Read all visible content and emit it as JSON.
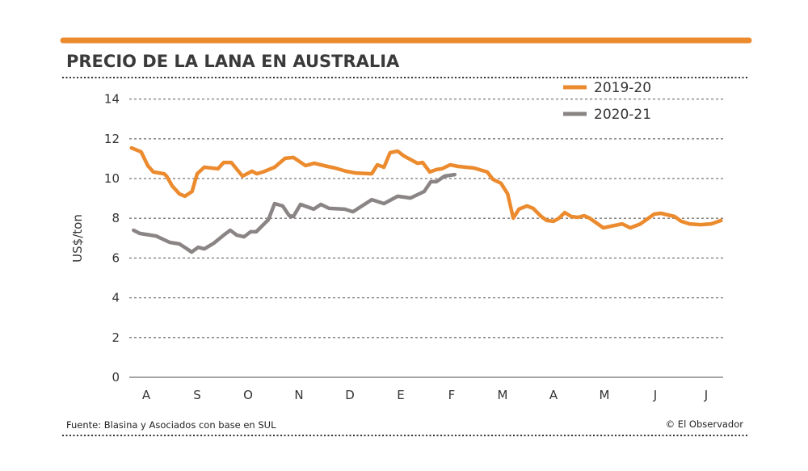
{
  "colors": {
    "accent": "#ec8a2e",
    "series_2019": "#ec8a2e",
    "series_2020": "#8a8584"
  },
  "source": "Fuente: Blasina y Asociados con base en SUL",
  "credit": "© El Observador",
  "chart_data": {
    "type": "line",
    "title": "PRECIO DE LA LANA EN AUSTRALIA",
    "xlabel": "",
    "ylabel": "US$/ton",
    "ylim": [
      0,
      14
    ],
    "yticks": [
      0,
      2,
      4,
      6,
      8,
      10,
      12,
      14
    ],
    "x_tick_labels": [
      "A",
      "S",
      "O",
      "N",
      "D",
      "E",
      "F",
      "M",
      "A",
      "M",
      "J",
      "J"
    ],
    "x_units": "months since start of August (0 = A)",
    "grid": true,
    "legend_position": "top-right",
    "series": [
      {
        "name": "2019-20",
        "color": "#ec8a2e",
        "points": [
          [
            -0.29,
            11.54
          ],
          [
            -0.1,
            11.34
          ],
          [
            0.03,
            10.65
          ],
          [
            0.14,
            10.33
          ],
          [
            0.35,
            10.24
          ],
          [
            0.4,
            10.12
          ],
          [
            0.51,
            9.63
          ],
          [
            0.65,
            9.23
          ],
          [
            0.76,
            9.11
          ],
          [
            0.9,
            9.35
          ],
          [
            1.0,
            10.24
          ],
          [
            1.14,
            10.57
          ],
          [
            1.41,
            10.49
          ],
          [
            1.52,
            10.81
          ],
          [
            1.67,
            10.81
          ],
          [
            1.89,
            10.12
          ],
          [
            2.08,
            10.37
          ],
          [
            2.17,
            10.24
          ],
          [
            2.29,
            10.33
          ],
          [
            2.52,
            10.57
          ],
          [
            2.73,
            11.02
          ],
          [
            2.89,
            11.06
          ],
          [
            3.13,
            10.65
          ],
          [
            3.3,
            10.77
          ],
          [
            3.56,
            10.61
          ],
          [
            3.71,
            10.53
          ],
          [
            3.92,
            10.37
          ],
          [
            4.11,
            10.28
          ],
          [
            4.43,
            10.24
          ],
          [
            4.54,
            10.69
          ],
          [
            4.67,
            10.57
          ],
          [
            4.79,
            11.3
          ],
          [
            4.94,
            11.38
          ],
          [
            5.06,
            11.14
          ],
          [
            5.33,
            10.77
          ],
          [
            5.43,
            10.81
          ],
          [
            5.57,
            10.33
          ],
          [
            5.7,
            10.45
          ],
          [
            5.81,
            10.49
          ],
          [
            5.97,
            10.69
          ],
          [
            6.13,
            10.61
          ],
          [
            6.44,
            10.53
          ],
          [
            6.7,
            10.33
          ],
          [
            6.81,
            9.96
          ],
          [
            6.97,
            9.76
          ],
          [
            7.1,
            9.23
          ],
          [
            7.21,
            8.01
          ],
          [
            7.32,
            8.46
          ],
          [
            7.48,
            8.62
          ],
          [
            7.6,
            8.5
          ],
          [
            7.76,
            8.09
          ],
          [
            7.87,
            7.89
          ],
          [
            8.0,
            7.85
          ],
          [
            8.11,
            8.01
          ],
          [
            8.22,
            8.29
          ],
          [
            8.35,
            8.09
          ],
          [
            8.48,
            8.05
          ],
          [
            8.6,
            8.13
          ],
          [
            8.71,
            8.01
          ],
          [
            8.98,
            7.52
          ],
          [
            9.35,
            7.72
          ],
          [
            9.51,
            7.52
          ],
          [
            9.71,
            7.72
          ],
          [
            9.98,
            8.21
          ],
          [
            10.11,
            8.25
          ],
          [
            10.38,
            8.09
          ],
          [
            10.51,
            7.85
          ],
          [
            10.67,
            7.72
          ],
          [
            10.89,
            7.68
          ],
          [
            11.1,
            7.72
          ],
          [
            11.29,
            7.89
          ]
        ]
      },
      {
        "name": "2020-21",
        "color": "#8a8584",
        "points": [
          [
            -0.25,
            7.4
          ],
          [
            -0.13,
            7.24
          ],
          [
            0.19,
            7.11
          ],
          [
            0.46,
            6.79
          ],
          [
            0.65,
            6.71
          ],
          [
            0.78,
            6.5
          ],
          [
            0.89,
            6.3
          ],
          [
            1.02,
            6.54
          ],
          [
            1.14,
            6.46
          ],
          [
            1.33,
            6.75
          ],
          [
            1.52,
            7.15
          ],
          [
            1.65,
            7.4
          ],
          [
            1.78,
            7.15
          ],
          [
            1.92,
            7.07
          ],
          [
            2.05,
            7.32
          ],
          [
            2.16,
            7.32
          ],
          [
            2.4,
            7.93
          ],
          [
            2.52,
            8.74
          ],
          [
            2.68,
            8.62
          ],
          [
            2.81,
            8.13
          ],
          [
            2.89,
            8.09
          ],
          [
            3.03,
            8.7
          ],
          [
            3.29,
            8.46
          ],
          [
            3.43,
            8.7
          ],
          [
            3.59,
            8.5
          ],
          [
            3.9,
            8.46
          ],
          [
            4.06,
            8.33
          ],
          [
            4.24,
            8.62
          ],
          [
            4.43,
            8.94
          ],
          [
            4.67,
            8.74
          ],
          [
            4.94,
            9.11
          ],
          [
            5.19,
            9.02
          ],
          [
            5.46,
            9.35
          ],
          [
            5.59,
            9.84
          ],
          [
            5.7,
            9.84
          ],
          [
            5.86,
            10.12
          ],
          [
            6.06,
            10.2
          ]
        ]
      }
    ]
  }
}
